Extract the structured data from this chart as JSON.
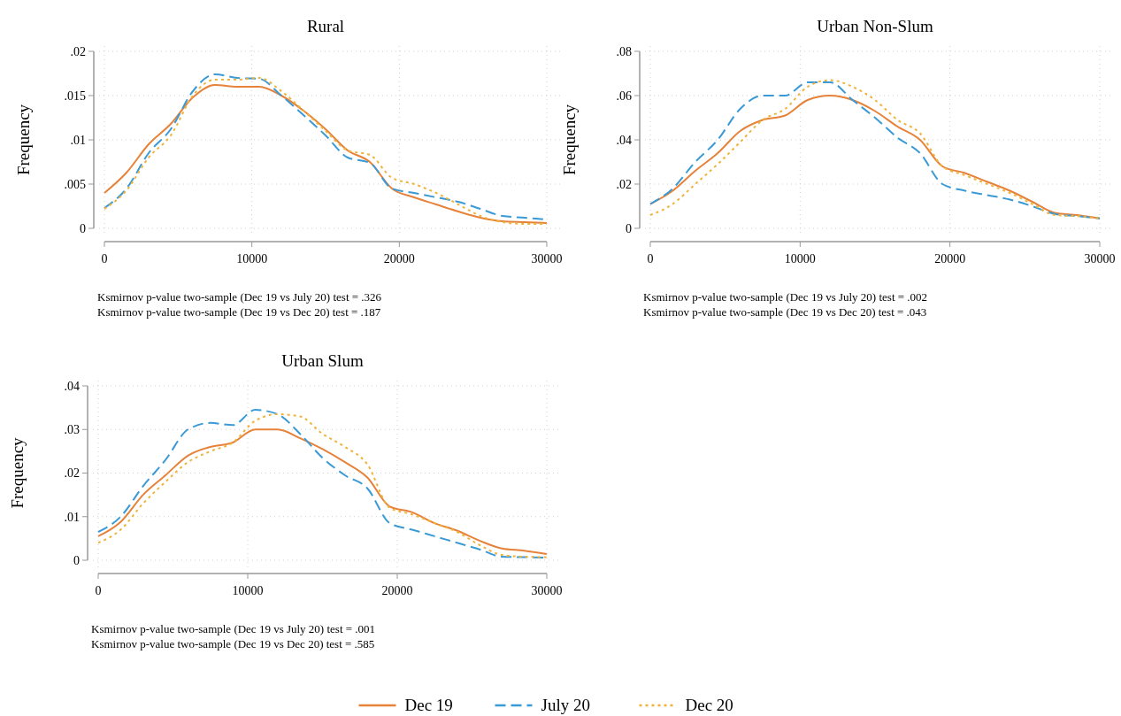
{
  "chart_data": [
    {
      "type": "line",
      "title": "Rural",
      "ylabel": "Frequency",
      "x": [
        0,
        1500,
        3000,
        4500,
        6000,
        7500,
        9000,
        10500,
        12000,
        13500,
        15000,
        16500,
        18000,
        19500,
        21000,
        22500,
        24000,
        25500,
        27000,
        28500,
        30000
      ],
      "xlim": [
        0,
        30000
      ],
      "xticks": [
        0,
        10000,
        20000,
        30000
      ],
      "ylim": [
        0,
        0.02
      ],
      "yticks": [
        {
          "value": 0,
          "label": "0"
        },
        {
          "value": 0.005,
          "label": ".005"
        },
        {
          "value": 0.01,
          "label": ".01"
        },
        {
          "value": 0.015,
          "label": ".015"
        },
        {
          "value": 0.02,
          "label": ".02"
        }
      ],
      "grid": true,
      "series": [
        {
          "color": "#e6823a",
          "line_style": "solid",
          "values": [
            0.004,
            0.0063,
            0.0095,
            0.0118,
            0.0148,
            0.0162,
            0.016,
            0.016,
            0.015,
            0.0133,
            0.0112,
            0.0088,
            0.0075,
            0.0045,
            0.0035,
            0.0027,
            0.0019,
            0.0012,
            0.0008,
            0.0007,
            0.0006
          ]
        },
        {
          "color": "#3a9ad6",
          "line_style": "dashed",
          "values": [
            0.0023,
            0.0045,
            0.0085,
            0.0112,
            0.0155,
            0.0174,
            0.017,
            0.0169,
            0.015,
            0.0128,
            0.0105,
            0.008,
            0.0074,
            0.0045,
            0.004,
            0.0035,
            0.003,
            0.0022,
            0.0014,
            0.0012,
            0.001
          ]
        },
        {
          "color": "#f0b33a",
          "line_style": "dotted",
          "values": [
            0.0022,
            0.0043,
            0.008,
            0.0105,
            0.015,
            0.0168,
            0.0168,
            0.017,
            0.0155,
            0.0133,
            0.011,
            0.0088,
            0.0083,
            0.0057,
            0.005,
            0.004,
            0.0027,
            0.0014,
            0.0007,
            0.0005,
            0.0005
          ]
        }
      ],
      "annotations": [
        "Ksmirnov p-value two-sample (Dec 19 vs July 20) test = .326",
        "Ksmirnov p-value two-sample (Dec 19 vs Dec 20) test = .187"
      ]
    },
    {
      "type": "line",
      "title": "Urban Non-Slum",
      "ylabel": "Frequency",
      "x": [
        0,
        1500,
        3000,
        4500,
        6000,
        7500,
        9000,
        10500,
        12000,
        13500,
        15000,
        16500,
        18000,
        19500,
        21000,
        22500,
        24000,
        25500,
        27000,
        28500,
        30000
      ],
      "xlim": [
        0,
        30000
      ],
      "xticks": [
        0,
        10000,
        20000,
        30000
      ],
      "ylim": [
        0,
        0.08
      ],
      "yticks": [
        {
          "value": 0,
          "label": "0"
        },
        {
          "value": 0.02,
          "label": ".02"
        },
        {
          "value": 0.04,
          "label": ".04"
        },
        {
          "value": 0.06,
          "label": ".06"
        },
        {
          "value": 0.08,
          "label": ".08"
        }
      ],
      "grid": true,
      "series": [
        {
          "color": "#e6823a",
          "line_style": "solid",
          "values": [
            0.011,
            0.017,
            0.026,
            0.034,
            0.044,
            0.049,
            0.051,
            0.058,
            0.06,
            0.058,
            0.053,
            0.046,
            0.04,
            0.028,
            0.025,
            0.021,
            0.017,
            0.012,
            0.007,
            0.006,
            0.0045
          ]
        },
        {
          "color": "#3a9ad6",
          "line_style": "dashed",
          "values": [
            0.011,
            0.018,
            0.03,
            0.04,
            0.054,
            0.06,
            0.06,
            0.066,
            0.066,
            0.058,
            0.05,
            0.041,
            0.034,
            0.02,
            0.017,
            0.015,
            0.013,
            0.01,
            0.0065,
            0.0055,
            0.0045
          ]
        },
        {
          "color": "#f0b33a",
          "line_style": "dotted",
          "values": [
            0.006,
            0.011,
            0.02,
            0.029,
            0.039,
            0.049,
            0.054,
            0.064,
            0.067,
            0.064,
            0.058,
            0.049,
            0.043,
            0.028,
            0.024,
            0.02,
            0.016,
            0.011,
            0.006,
            0.0055,
            0.0045
          ]
        }
      ],
      "annotations": [
        "Ksmirnov p-value two-sample (Dec 19 vs July 20) test = .002",
        "Ksmirnov p-value two-sample (Dec 19 vs Dec 20) test = .043"
      ]
    },
    {
      "type": "line",
      "title": "Urban Slum",
      "ylabel": "Frequency",
      "x": [
        0,
        1500,
        3000,
        4500,
        6000,
        7500,
        9000,
        10500,
        12000,
        13500,
        15000,
        16500,
        18000,
        19500,
        21000,
        22500,
        24000,
        25500,
        27000,
        28500,
        30000
      ],
      "xlim": [
        0,
        30000
      ],
      "xticks": [
        0,
        10000,
        20000,
        30000
      ],
      "ylim": [
        0,
        0.04
      ],
      "yticks": [
        {
          "value": 0,
          "label": "0"
        },
        {
          "value": 0.01,
          "label": ".01"
        },
        {
          "value": 0.02,
          "label": ".02"
        },
        {
          "value": 0.03,
          "label": ".03"
        },
        {
          "value": 0.04,
          "label": ".04"
        }
      ],
      "grid": true,
      "legend": "bottom",
      "series": [
        {
          "name": "Dec 19",
          "color": "#e6823a",
          "line_style": "solid",
          "values": [
            0.0055,
            0.0088,
            0.015,
            0.0195,
            0.024,
            0.026,
            0.027,
            0.03,
            0.03,
            0.028,
            0.0255,
            0.0225,
            0.019,
            0.0123,
            0.011,
            0.0085,
            0.0068,
            0.0045,
            0.0027,
            0.0022,
            0.0014
          ]
        },
        {
          "name": "July 20",
          "color": "#3a9ad6",
          "line_style": "dashed",
          "values": [
            0.0065,
            0.01,
            0.017,
            0.023,
            0.03,
            0.0315,
            0.031,
            0.0345,
            0.0335,
            0.029,
            0.0235,
            0.0195,
            0.0165,
            0.0085,
            0.007,
            0.0055,
            0.004,
            0.0025,
            0.0008,
            0.0007,
            0.0006
          ]
        },
        {
          "name": "Dec 20",
          "color": "#f0b33a",
          "line_style": "dotted",
          "values": [
            0.004,
            0.007,
            0.013,
            0.018,
            0.0225,
            0.025,
            0.027,
            0.032,
            0.0335,
            0.033,
            0.029,
            0.026,
            0.022,
            0.012,
            0.0105,
            0.0085,
            0.0065,
            0.0035,
            0.0012,
            0.0008,
            0.0007
          ]
        }
      ],
      "annotations": [
        "Ksmirnov p-value two-sample (Dec 19 vs July 20) test = .001",
        "Ksmirnov p-value two-sample (Dec 19 vs Dec 20) test = .585"
      ]
    }
  ]
}
